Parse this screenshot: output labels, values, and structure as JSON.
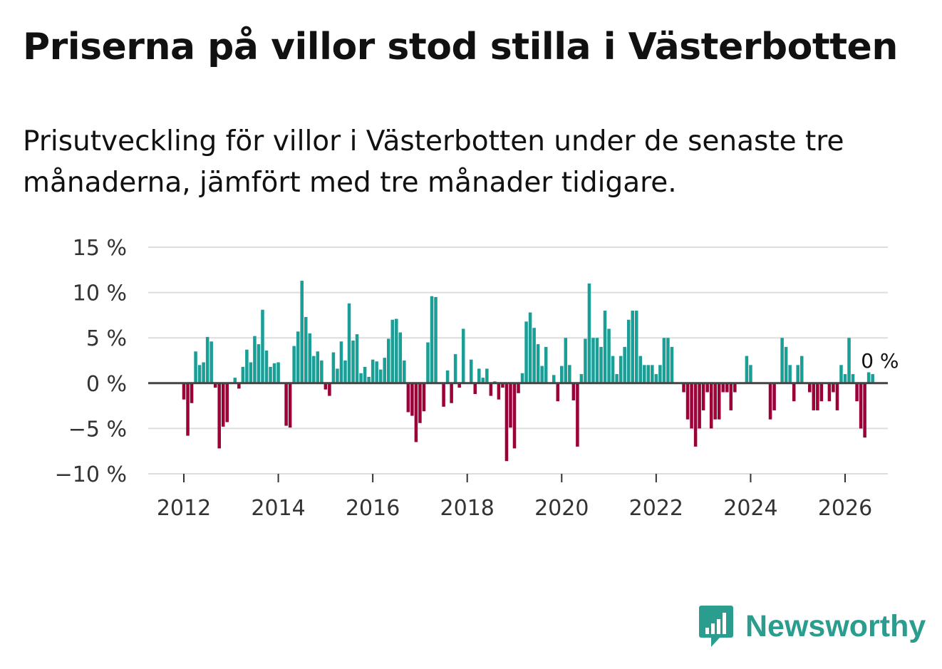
{
  "title": "Priserna på villor stod stilla i Västerbotten",
  "subtitle": "Prisutveckling för villor i Västerbotten under de senaste tre månaderna, jämfört med tre månader tidigare.",
  "brand": "Newsworthy",
  "colors": {
    "positive": "#1a9e96",
    "negative": "#9c0038",
    "grid": "#dddddd",
    "zero": "#444444",
    "brand": "#2a9d8f"
  },
  "chart_data": {
    "type": "bar",
    "title": "Priserna på villor stod stilla i Västerbotten",
    "xlabel": "",
    "ylabel": "",
    "ylim": [
      -10,
      15
    ],
    "yticks": [
      15,
      10,
      5,
      0,
      -5,
      -10
    ],
    "ytick_labels": [
      "15 %",
      "10 %",
      "5 %",
      "0 %",
      "−5 %",
      "−10 %"
    ],
    "xticks": [
      2012,
      2014,
      2016,
      2018,
      2020,
      2022,
      2024,
      2026
    ],
    "xtick_labels": [
      "2012",
      "2014",
      "2016",
      "2018",
      "2020",
      "2022",
      "2024",
      "2026"
    ],
    "x_start": 2012.0,
    "x_step_months": 1,
    "end_label": "0 %",
    "values": [
      -1.8,
      -5.8,
      -2.2,
      3.5,
      2.0,
      2.3,
      5.1,
      4.6,
      -0.5,
      -7.2,
      -4.8,
      -4.3,
      0,
      0.6,
      -0.6,
      1.8,
      3.7,
      2.3,
      5.2,
      4.3,
      8.1,
      3.6,
      1.8,
      2.2,
      2.3,
      0,
      -4.7,
      -4.9,
      4.1,
      5.7,
      11.3,
      7.3,
      5.5,
      3.0,
      3.5,
      2.5,
      -0.7,
      -1.4,
      3.4,
      1.6,
      4.6,
      2.5,
      8.8,
      4.7,
      5.4,
      1.1,
      1.8,
      0.7,
      2.6,
      2.4,
      1.5,
      2.8,
      4.9,
      7.0,
      7.1,
      5.6,
      2.5,
      -3.2,
      -3.6,
      -6.5,
      -4.4,
      -3.1,
      4.5,
      9.6,
      9.5,
      0,
      -2.6,
      1.4,
      -2.2,
      3.2,
      -0.5,
      6.0,
      0,
      2.6,
      -1.2,
      1.6,
      0.6,
      1.6,
      -1.4,
      0.2,
      -1.8,
      -0.5,
      -8.6,
      -4.9,
      -7.2,
      -1.1,
      1.1,
      6.8,
      7.8,
      6.1,
      4.3,
      1.9,
      4.0,
      0,
      0.9,
      -2.0,
      1.9,
      5.0,
      2.0,
      -1.9,
      -7.0,
      1.0,
      4.9,
      11.0,
      5.0,
      5.0,
      4.0,
      8.0,
      6.0,
      3.0,
      1.0,
      3.0,
      4.0,
      7.0,
      8.0,
      8.0,
      3.0,
      2.0,
      2.0,
      2.0,
      1.0,
      2.0,
      5.0,
      5.0,
      4.0,
      0,
      0,
      -1.0,
      -4.0,
      -5.0,
      -7.0,
      -5.0,
      -3.0,
      -1.0,
      -5.0,
      -4.0,
      -4.0,
      -1.0,
      -1.0,
      -3.0,
      -1.0,
      0,
      0,
      3.0,
      2.0,
      0,
      0,
      0,
      0,
      -4.0,
      -3.0,
      0,
      5.0,
      4.0,
      2.0,
      -2.0,
      2.0,
      3.0,
      0,
      -1.0,
      -3.0,
      -3.0,
      -2.0,
      0,
      -2.0,
      -1.0,
      -3.0,
      2.0,
      1.0,
      5.0,
      1.0,
      -2.0,
      -5.0,
      -6.0,
      1.2,
      1.0,
      0
    ]
  }
}
